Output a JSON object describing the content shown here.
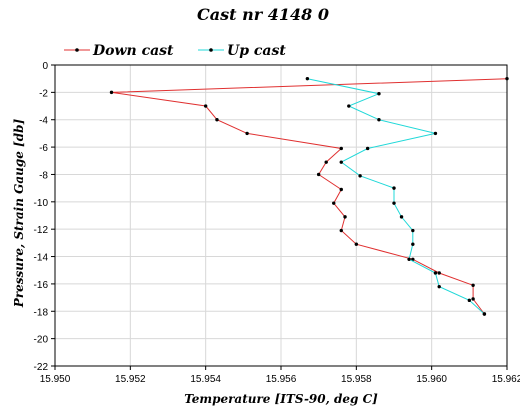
{
  "chart_data": {
    "type": "line",
    "title": "Cast nr 4148 0",
    "xlabel": "Temperature [ITS-90, deg C]",
    "ylabel": "Pressure, Strain Gauge [db]",
    "xlim": [
      15.95,
      15.962
    ],
    "ylim": [
      -22,
      0
    ],
    "x_ticks": [
      "15.950",
      "15.952",
      "15.954",
      "15.956",
      "15.958",
      "15.960",
      "15.962"
    ],
    "y_ticks": [
      "0",
      "-2",
      "-4",
      "-6",
      "-8",
      "-10",
      "-12",
      "-14",
      "-16",
      "-18",
      "-20",
      "-22"
    ],
    "grid": true,
    "legend_position": "top",
    "series": [
      {
        "name": "Down cast",
        "color": "#e03030",
        "points": [
          [
            15.962,
            -1.0
          ],
          [
            15.9515,
            -2.0
          ],
          [
            15.954,
            -3.0
          ],
          [
            15.9543,
            -4.0
          ],
          [
            15.9551,
            -5.0
          ],
          [
            15.9576,
            -6.1
          ],
          [
            15.9572,
            -7.1
          ],
          [
            15.957,
            -8.0
          ],
          [
            15.9576,
            -9.1
          ],
          [
            15.9574,
            -10.1
          ],
          [
            15.9577,
            -11.1
          ],
          [
            15.9576,
            -12.1
          ],
          [
            15.958,
            -13.1
          ],
          [
            15.9595,
            -14.2
          ],
          [
            15.9602,
            -15.2
          ],
          [
            15.9611,
            -16.1
          ],
          [
            15.9611,
            -17.1
          ],
          [
            15.9614,
            -18.2
          ]
        ]
      },
      {
        "name": "Up cast",
        "color": "#20d8d8",
        "points": [
          [
            15.9567,
            -1.0
          ],
          [
            15.9586,
            -2.1
          ],
          [
            15.9578,
            -3.0
          ],
          [
            15.9586,
            -4.0
          ],
          [
            15.9601,
            -5.0
          ],
          [
            15.9583,
            -6.1
          ],
          [
            15.9576,
            -7.1
          ],
          [
            15.9581,
            -8.1
          ],
          [
            15.959,
            -9.0
          ],
          [
            15.959,
            -10.1
          ],
          [
            15.9592,
            -11.1
          ],
          [
            15.9595,
            -12.1
          ],
          [
            15.9595,
            -13.1
          ],
          [
            15.9594,
            -14.2
          ],
          [
            15.9601,
            -15.2
          ],
          [
            15.9602,
            -16.2
          ],
          [
            15.961,
            -17.2
          ],
          [
            15.9614,
            -18.2
          ]
        ]
      }
    ]
  }
}
